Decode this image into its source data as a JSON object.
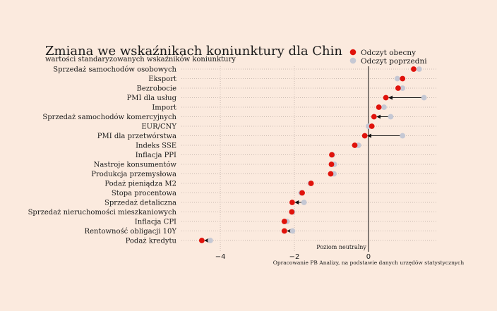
{
  "colors": {
    "background": "#fbeade",
    "current": "#e0120b",
    "previous": "#c5c8d4",
    "text": "#1a1a1a",
    "grid": "#b9aba2",
    "neutral_line": "#111111"
  },
  "chart_data": {
    "type": "scatter",
    "title": "Zmiana we wskaźnikach koniunktury dla Chin",
    "subtitle": "wartości standaryzowanych wskaźników koniunktury",
    "legend": {
      "position": "top-right",
      "current_label": "Odczyt obecny",
      "previous_label": "Odczyt poprzedni"
    },
    "neutral_label": "Poziom neutralny",
    "source": "Opracowanie PB Analizy, na podstawie danych urzędów statystycznych",
    "xlim": [
      -5.05,
      1.85
    ],
    "xticks": [
      -4,
      -2,
      0
    ],
    "grid": true,
    "categories": [
      "Sprzedaż samochodów osobowych",
      "Eksport",
      "Bezrobocie",
      "PMI dla usług",
      "Import",
      "Sprzedaż samochodów komercyjnych",
      "EUR/CNY",
      "PMI dla przetwórstwa",
      "Indeks SSE",
      "Inflacja PPI",
      "Nastroje konsumentów",
      "Produkcja przemysłowa",
      "Podaż pieniądza M2",
      "Stopa procentowa",
      "Sprzedaż detaliczna",
      "Sprzedaż nieruchomości mieszkaniowych",
      "Inflacja CPI",
      "Rentowność obligacji 10Y",
      "Podaż kredytu"
    ],
    "series": [
      {
        "name": "Odczyt obecny",
        "values": [
          1.22,
          0.92,
          0.8,
          0.47,
          0.28,
          0.15,
          0.09,
          -0.1,
          -0.37,
          -0.99,
          -1.0,
          -1.02,
          -1.55,
          -1.79,
          -2.06,
          -2.07,
          -2.27,
          -2.27,
          -4.5
        ]
      },
      {
        "name": "Odczyt poprzedni",
        "values": [
          1.37,
          0.78,
          0.92,
          1.5,
          0.42,
          0.6,
          0.0,
          0.92,
          -0.27,
          -0.97,
          -0.92,
          -0.93,
          -1.57,
          -1.82,
          -1.74,
          -2.05,
          -2.2,
          -2.05,
          -4.27
        ]
      }
    ]
  }
}
